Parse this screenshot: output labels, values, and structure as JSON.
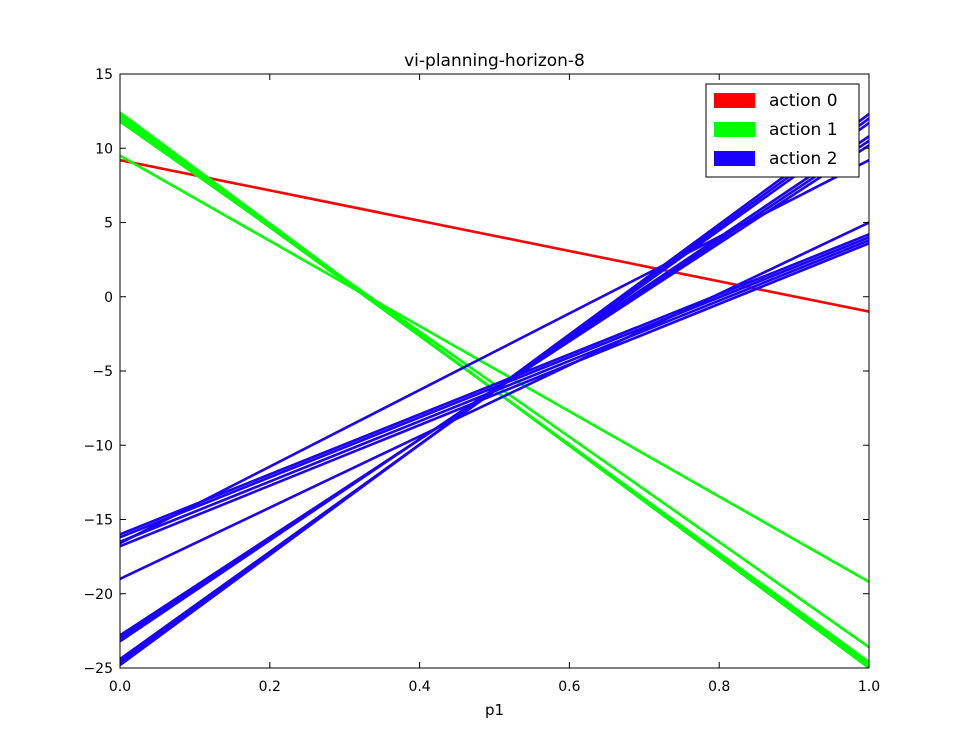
{
  "chart_data": {
    "type": "line",
    "title": "vi-planning-horizon-8",
    "xlabel": "p1",
    "ylabel": "",
    "xlim": [
      0,
      1
    ],
    "ylim": [
      -25,
      15
    ],
    "xticks": [
      0.0,
      0.2,
      0.4,
      0.6,
      0.8,
      1.0
    ],
    "xtick_labels": [
      "0.0",
      "0.2",
      "0.4",
      "0.6",
      "0.8",
      "1.0"
    ],
    "yticks": [
      -25,
      -20,
      -15,
      -10,
      -5,
      0,
      5,
      10,
      15
    ],
    "ytick_labels": [
      "−25",
      "−20",
      "−15",
      "−10",
      "−5",
      "0",
      "5",
      "10",
      "15"
    ],
    "grid": false,
    "legend_position": "top-right",
    "series": [
      {
        "name": "action 0",
        "color": "#ff0000",
        "lines": [
          [
            9.2,
            -1.0
          ]
        ]
      },
      {
        "name": "action 1",
        "color": "#00ff00",
        "lines": [
          [
            12.4,
            -25.0
          ],
          [
            12.2,
            -24.8
          ],
          [
            12.0,
            -24.6
          ],
          [
            11.8,
            -23.6
          ],
          [
            9.5,
            -19.2
          ]
        ]
      },
      {
        "name": "action 2",
        "color": "#1a00ff",
        "lines": [
          [
            -24.8,
            12.3
          ],
          [
            -24.6,
            12.0
          ],
          [
            -24.4,
            11.7
          ],
          [
            -23.2,
            10.8
          ],
          [
            -23.0,
            10.5
          ],
          [
            -22.8,
            10.2
          ],
          [
            -16.8,
            3.6
          ],
          [
            -16.5,
            3.8
          ],
          [
            -16.2,
            4.0
          ],
          [
            -16.0,
            4.2
          ],
          [
            -19.0,
            5.0
          ],
          [
            -16.6,
            9.2
          ]
        ]
      }
    ]
  }
}
